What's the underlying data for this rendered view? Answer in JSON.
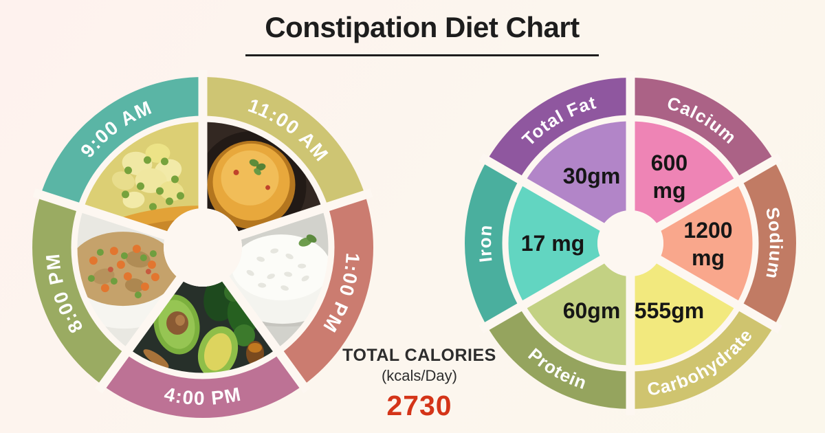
{
  "header": {
    "title": "Constipation Diet Chart"
  },
  "summary": {
    "label": "TOTAL CALORIES",
    "unit": "(kcals/Day)",
    "value": "2730"
  },
  "colors": {
    "background_start": "#fef2ee",
    "background_end": "#fbf7ec",
    "title_text": "#1d1d1d",
    "calories_value": "#d43418",
    "separator": "#fdf7f1"
  },
  "chart_data": [
    {
      "type": "pie",
      "title": "Meal schedule wheel",
      "legend_position": "outer-ring",
      "segments": [
        {
          "label": "11:00 AM",
          "color": "#cec573",
          "start_angle": 0,
          "end_angle": 72,
          "food": "lentil dal bowl"
        },
        {
          "label": "1:00 PM",
          "color": "#cb7c70",
          "start_angle": 72,
          "end_angle": 144,
          "food": "steamed white rice"
        },
        {
          "label": "4:00 PM",
          "color": "#bd7295",
          "start_angle": 144,
          "end_angle": 216,
          "food": "avocado with honey"
        },
        {
          "label": "8:00 PM",
          "color": "#9aab62",
          "start_angle": 216,
          "end_angle": 288,
          "food": "vegetable fried rice"
        },
        {
          "label": "9:00 AM",
          "color": "#5ab5a5",
          "start_angle": 288,
          "end_angle": 360,
          "food": "potato pea curry"
        }
      ]
    },
    {
      "type": "pie",
      "title": "Daily nutrient amounts",
      "legend_position": "outer-ring",
      "segments": [
        {
          "label": "Calcium",
          "value": "600 mg",
          "value_lines": [
            "600",
            "mg"
          ],
          "ring_color": "#ab6286",
          "slice_color": "#ee84b5",
          "start_angle": 0,
          "end_angle": 60
        },
        {
          "label": "Sodium",
          "value": "1200 mg",
          "value_lines": [
            "1200",
            "mg"
          ],
          "ring_color": "#c17b64",
          "slice_color": "#f9a78c",
          "start_angle": 60,
          "end_angle": 120
        },
        {
          "label": "Carbohydrate",
          "value": "555gm",
          "value_lines": [
            "555gm"
          ],
          "ring_color": "#cfc46f",
          "slice_color": "#f2e97e",
          "start_angle": 120,
          "end_angle": 180
        },
        {
          "label": "Protein",
          "value": "60gm",
          "value_lines": [
            "60gm"
          ],
          "ring_color": "#95a45e",
          "slice_color": "#c3d183",
          "start_angle": 180,
          "end_angle": 240
        },
        {
          "label": "Iron",
          "value": "17 mg",
          "value_lines": [
            "17 mg"
          ],
          "ring_color": "#4aaf9e",
          "slice_color": "#62d5c1",
          "start_angle": 240,
          "end_angle": 300
        },
        {
          "label": "Total Fat",
          "value": "30gm",
          "value_lines": [
            "30gm"
          ],
          "ring_color": "#8f579f",
          "slice_color": "#b285c8",
          "start_angle": 300,
          "end_angle": 360
        }
      ]
    }
  ]
}
